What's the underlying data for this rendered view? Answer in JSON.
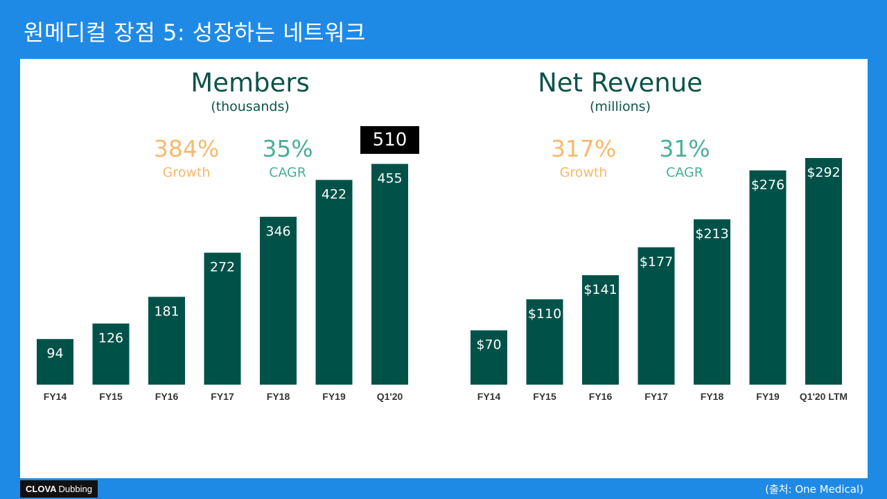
{
  "slide": {
    "title": "원메디컬 장점 5: 성장하는 네트워크",
    "source": "(출처: One Medical)",
    "logo_brand": "CLOVA",
    "logo_product": "Dubbing",
    "callout": "510"
  },
  "colors": {
    "background": "#1f8ae6",
    "bar": "#005249",
    "title": "#0d5347",
    "growth": "#f6b96b",
    "cagr": "#4aae98"
  },
  "members": {
    "growth_value": "384%",
    "growth_label": "Growth",
    "cagr_value": "35%",
    "cagr_label": "CAGR"
  },
  "revenue": {
    "growth_value": "317%",
    "growth_label": "Growth",
    "cagr_value": "31%",
    "cagr_label": "CAGR"
  },
  "chart_data": [
    {
      "type": "bar",
      "title": "Members",
      "subtitle": "(thousands)",
      "categories": [
        "FY14",
        "FY15",
        "FY16",
        "FY17",
        "FY18",
        "FY19",
        "Q1'20"
      ],
      "values": [
        94,
        126,
        181,
        272,
        346,
        422,
        455
      ],
      "labels": [
        "94",
        "126",
        "181",
        "272",
        "346",
        "422",
        "455"
      ],
      "ylim": [
        0,
        500
      ],
      "grid": false
    },
    {
      "type": "bar",
      "title": "Net Revenue",
      "subtitle": "(millions)",
      "categories": [
        "FY14",
        "FY15",
        "FY16",
        "FY17",
        "FY18",
        "FY19",
        "Q1'20 LTM"
      ],
      "values": [
        70,
        110,
        141,
        177,
        213,
        276,
        292
      ],
      "labels": [
        "$70",
        "$110",
        "$141",
        "$177",
        "$213",
        "$276",
        "$292"
      ],
      "ylim": [
        0,
        320
      ],
      "grid": false
    }
  ]
}
